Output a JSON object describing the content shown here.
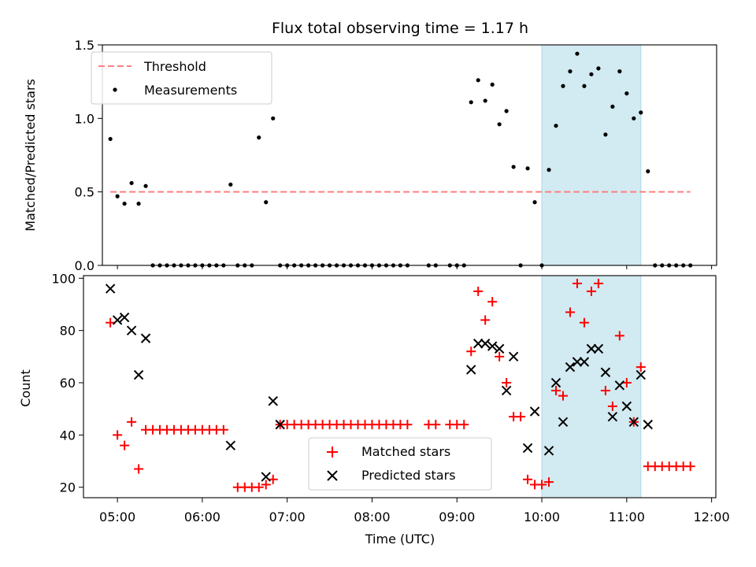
{
  "chart_data": [
    {
      "type": "scatter",
      "title": "Flux total observing time = 1.17 h",
      "ylabel": "Matched/Predicted stars",
      "xlabel": "",
      "xlim": [
        "04:36",
        "12:03"
      ],
      "ylim": [
        0.0,
        1.5
      ],
      "yticks": [
        "0.0",
        "0.5",
        "1.0",
        "1.5"
      ],
      "legend_position": "upper-left",
      "highlight_interval": [
        "10:00",
        "11:10"
      ],
      "highlight_color": "#add8e6",
      "threshold": {
        "name": "Threshold",
        "value": 0.5,
        "x_range": [
          "04:55",
          "11:45"
        ],
        "color": "#ff7f7f"
      },
      "series": [
        {
          "name": "Measurements",
          "marker": "dot",
          "color": "#000000",
          "points": [
            [
              "04:55",
              0.86
            ],
            [
              "05:00",
              0.47
            ],
            [
              "05:05",
              0.42
            ],
            [
              "05:10",
              0.56
            ],
            [
              "05:15",
              0.42
            ],
            [
              "05:20",
              0.54
            ],
            [
              "05:25",
              0.0
            ],
            [
              "05:30",
              0.0
            ],
            [
              "05:35",
              0.0
            ],
            [
              "05:40",
              0.0
            ],
            [
              "05:45",
              0.0
            ],
            [
              "05:50",
              0.0
            ],
            [
              "05:55",
              0.0
            ],
            [
              "06:00",
              0.0
            ],
            [
              "06:05",
              0.0
            ],
            [
              "06:10",
              0.0
            ],
            [
              "06:15",
              0.0
            ],
            [
              "06:20",
              0.55
            ],
            [
              "06:25",
              0.0
            ],
            [
              "06:30",
              0.0
            ],
            [
              "06:35",
              0.0
            ],
            [
              "06:40",
              0.87
            ],
            [
              "06:45",
              0.43
            ],
            [
              "06:50",
              1.0
            ],
            [
              "06:55",
              0.0
            ],
            [
              "07:00",
              0.0
            ],
            [
              "07:05",
              0.0
            ],
            [
              "07:10",
              0.0
            ],
            [
              "07:15",
              0.0
            ],
            [
              "07:20",
              0.0
            ],
            [
              "07:25",
              0.0
            ],
            [
              "07:30",
              0.0
            ],
            [
              "07:35",
              0.0
            ],
            [
              "07:40",
              0.0
            ],
            [
              "07:45",
              0.0
            ],
            [
              "07:50",
              0.0
            ],
            [
              "07:55",
              0.0
            ],
            [
              "08:00",
              0.0
            ],
            [
              "08:05",
              0.0
            ],
            [
              "08:10",
              0.0
            ],
            [
              "08:15",
              0.0
            ],
            [
              "08:20",
              0.0
            ],
            [
              "08:25",
              0.0
            ],
            [
              "08:40",
              0.0
            ],
            [
              "08:45",
              0.0
            ],
            [
              "08:55",
              0.0
            ],
            [
              "09:00",
              0.0
            ],
            [
              "09:05",
              0.0
            ],
            [
              "09:10",
              1.11
            ],
            [
              "09:15",
              1.26
            ],
            [
              "09:20",
              1.12
            ],
            [
              "09:25",
              1.23
            ],
            [
              "09:30",
              0.96
            ],
            [
              "09:35",
              1.05
            ],
            [
              "09:40",
              0.67
            ],
            [
              "09:45",
              0.0
            ],
            [
              "09:50",
              0.66
            ],
            [
              "09:55",
              0.43
            ],
            [
              "10:00",
              0.0
            ],
            [
              "10:05",
              0.65
            ],
            [
              "10:10",
              0.95
            ],
            [
              "10:15",
              1.22
            ],
            [
              "10:20",
              1.32
            ],
            [
              "10:25",
              1.44
            ],
            [
              "10:30",
              1.22
            ],
            [
              "10:35",
              1.3
            ],
            [
              "10:40",
              1.34
            ],
            [
              "10:45",
              0.89
            ],
            [
              "10:50",
              1.08
            ],
            [
              "10:55",
              1.32
            ],
            [
              "11:00",
              1.17
            ],
            [
              "11:05",
              1.0
            ],
            [
              "11:10",
              1.04
            ],
            [
              "11:15",
              0.64
            ],
            [
              "11:20",
              0.0
            ],
            [
              "11:25",
              0.0
            ],
            [
              "11:30",
              0.0
            ],
            [
              "11:35",
              0.0
            ],
            [
              "11:40",
              0.0
            ],
            [
              "11:45",
              0.0
            ]
          ]
        }
      ]
    },
    {
      "type": "scatter",
      "title": "",
      "ylabel": "Count",
      "xlabel": "Time (UTC)",
      "xlim": [
        "04:36",
        "12:03"
      ],
      "ylim": [
        16,
        101
      ],
      "yticks": [
        "20",
        "40",
        "60",
        "80",
        "100"
      ],
      "xticks": [
        "05:00",
        "06:00",
        "07:00",
        "08:00",
        "09:00",
        "10:00",
        "11:00",
        "12:00"
      ],
      "legend_position": "lower-center",
      "highlight_interval": [
        "10:00",
        "11:10"
      ],
      "highlight_color": "#add8e6",
      "series": [
        {
          "name": "Matched stars",
          "marker": "plus",
          "color": "#ff0000",
          "points": [
            [
              "04:55",
              83
            ],
            [
              "05:00",
              40
            ],
            [
              "05:05",
              36
            ],
            [
              "05:10",
              45
            ],
            [
              "05:15",
              27
            ],
            [
              "05:20",
              42
            ],
            [
              "05:25",
              42
            ],
            [
              "05:30",
              42
            ],
            [
              "05:35",
              42
            ],
            [
              "05:40",
              42
            ],
            [
              "05:45",
              42
            ],
            [
              "05:50",
              42
            ],
            [
              "05:55",
              42
            ],
            [
              "06:00",
              42
            ],
            [
              "06:05",
              42
            ],
            [
              "06:10",
              42
            ],
            [
              "06:15",
              42
            ],
            [
              "06:25",
              20
            ],
            [
              "06:30",
              20
            ],
            [
              "06:35",
              20
            ],
            [
              "06:40",
              20
            ],
            [
              "06:45",
              21
            ],
            [
              "06:50",
              23
            ],
            [
              "06:55",
              44
            ],
            [
              "07:00",
              44
            ],
            [
              "07:05",
              44
            ],
            [
              "07:10",
              44
            ],
            [
              "07:15",
              44
            ],
            [
              "07:20",
              44
            ],
            [
              "07:25",
              44
            ],
            [
              "07:30",
              44
            ],
            [
              "07:35",
              44
            ],
            [
              "07:40",
              44
            ],
            [
              "07:45",
              44
            ],
            [
              "07:50",
              44
            ],
            [
              "07:55",
              44
            ],
            [
              "08:00",
              44
            ],
            [
              "08:05",
              44
            ],
            [
              "08:10",
              44
            ],
            [
              "08:15",
              44
            ],
            [
              "08:20",
              44
            ],
            [
              "08:25",
              44
            ],
            [
              "08:40",
              44
            ],
            [
              "08:45",
              44
            ],
            [
              "08:55",
              44
            ],
            [
              "09:00",
              44
            ],
            [
              "09:05",
              44
            ],
            [
              "09:10",
              72
            ],
            [
              "09:15",
              95
            ],
            [
              "09:20",
              84
            ],
            [
              "09:25",
              91
            ],
            [
              "09:30",
              70
            ],
            [
              "09:35",
              60
            ],
            [
              "09:40",
              47
            ],
            [
              "09:45",
              47
            ],
            [
              "09:50",
              23
            ],
            [
              "09:55",
              21
            ],
            [
              "10:00",
              21
            ],
            [
              "10:05",
              22
            ],
            [
              "10:10",
              57
            ],
            [
              "10:15",
              55
            ],
            [
              "10:20",
              87
            ],
            [
              "10:25",
              98
            ],
            [
              "10:30",
              83
            ],
            [
              "10:35",
              95
            ],
            [
              "10:40",
              98
            ],
            [
              "10:45",
              57
            ],
            [
              "10:50",
              51
            ],
            [
              "10:55",
              78
            ],
            [
              "11:00",
              60
            ],
            [
              "11:05",
              45
            ],
            [
              "11:10",
              66
            ],
            [
              "11:15",
              28
            ],
            [
              "11:20",
              28
            ],
            [
              "11:25",
              28
            ],
            [
              "11:30",
              28
            ],
            [
              "11:35",
              28
            ],
            [
              "11:40",
              28
            ],
            [
              "11:45",
              28
            ]
          ]
        },
        {
          "name": "Predicted stars",
          "marker": "x",
          "color": "#000000",
          "points": [
            [
              "04:55",
              96
            ],
            [
              "05:00",
              84
            ],
            [
              "05:05",
              85
            ],
            [
              "05:10",
              80
            ],
            [
              "05:15",
              63
            ],
            [
              "05:20",
              77
            ],
            [
              "06:20",
              36
            ],
            [
              "06:45",
              24
            ],
            [
              "06:50",
              53
            ],
            [
              "06:55",
              44
            ],
            [
              "09:10",
              65
            ],
            [
              "09:15",
              75
            ],
            [
              "09:20",
              75
            ],
            [
              "09:25",
              74
            ],
            [
              "09:30",
              73
            ],
            [
              "09:35",
              57
            ],
            [
              "09:40",
              70
            ],
            [
              "09:50",
              35
            ],
            [
              "09:55",
              49
            ],
            [
              "10:05",
              34
            ],
            [
              "10:10",
              60
            ],
            [
              "10:15",
              45
            ],
            [
              "10:20",
              66
            ],
            [
              "10:25",
              68
            ],
            [
              "10:30",
              68
            ],
            [
              "10:35",
              73
            ],
            [
              "10:40",
              73
            ],
            [
              "10:45",
              64
            ],
            [
              "10:50",
              47
            ],
            [
              "10:55",
              59
            ],
            [
              "11:00",
              51
            ],
            [
              "11:05",
              45
            ],
            [
              "11:10",
              63
            ],
            [
              "11:15",
              44
            ]
          ]
        }
      ]
    }
  ]
}
